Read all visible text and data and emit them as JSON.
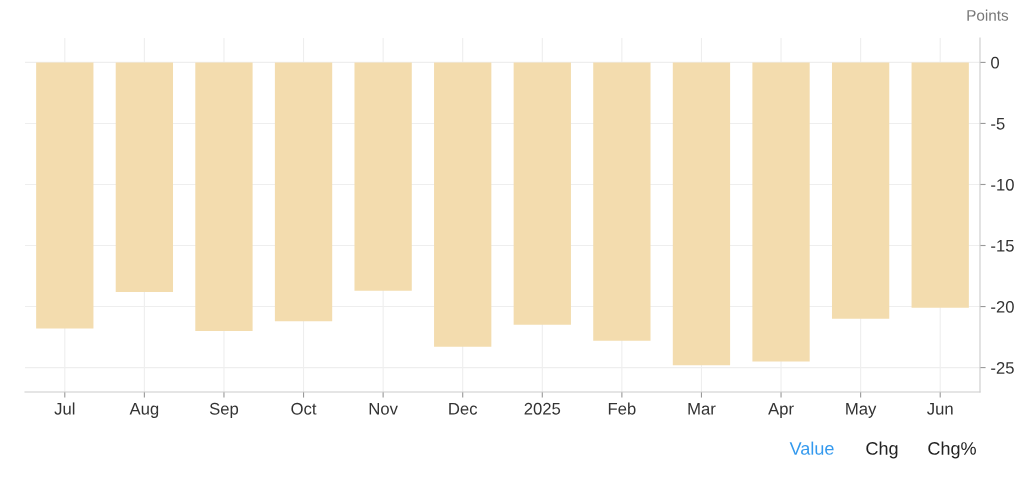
{
  "chart_data": {
    "type": "bar",
    "ylabel": "Points",
    "categories": [
      "Jul",
      "Aug",
      "Sep",
      "Oct",
      "Nov",
      "Dec",
      "2025",
      "Feb",
      "Mar",
      "Apr",
      "May",
      "Jun"
    ],
    "values": [
      -21.8,
      -18.8,
      -22.0,
      -21.2,
      -18.7,
      -23.3,
      -21.5,
      -22.8,
      -24.8,
      -24.5,
      -21.0,
      -20.1
    ],
    "color": "#f3dcae",
    "ylim": [
      -27,
      2
    ],
    "yticks": [
      -25,
      -20,
      -15,
      -10,
      -5,
      0
    ],
    "grid": true,
    "annotations": [
      "Value",
      "Chg",
      "Chg%"
    ]
  }
}
